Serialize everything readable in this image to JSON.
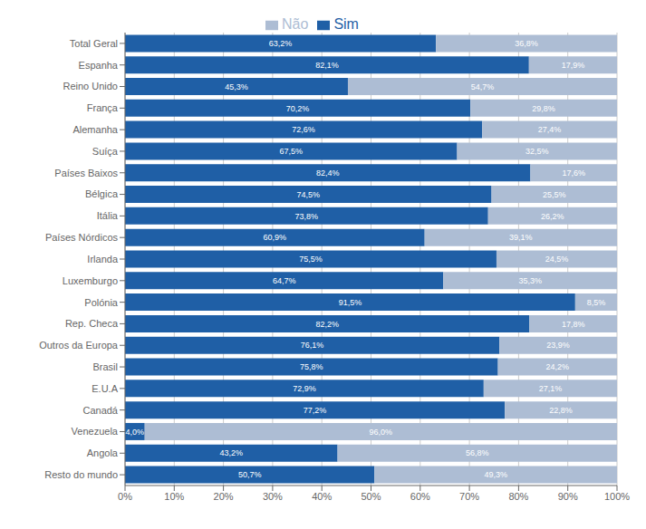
{
  "chart_data": {
    "type": "bar",
    "orientation": "horizontal",
    "stacked": true,
    "data_labels": true,
    "grid": true,
    "legend": "top",
    "categories": [
      "Total Geral",
      "Espanha",
      "Reino Unido",
      "França",
      "Alemanha",
      "Suíça",
      "Países Baixos",
      "Bélgica",
      "Itália",
      "Países Nórdicos",
      "Irlanda",
      "Luxemburgo",
      "Polónia",
      "Rep. Checa",
      "Outros da Europa",
      "Brasil",
      "E.U.A",
      "Canadá",
      "Venezuela",
      "Angola",
      "Resto do mundo"
    ],
    "series": [
      {
        "name": "Sim",
        "color": "#1F5FA6",
        "values": [
          63.2,
          82.1,
          45.3,
          70.2,
          72.6,
          67.5,
          82.4,
          74.5,
          73.8,
          60.9,
          75.5,
          64.7,
          91.5,
          82.2,
          76.1,
          75.8,
          72.9,
          77.2,
          4.0,
          43.2,
          50.7
        ],
        "value_labels": [
          "63,2%",
          "82,1%",
          "45,3%",
          "70,2%",
          "72,6%",
          "67,5%",
          "82,4%",
          "74,5%",
          "73,8%",
          "60,9%",
          "75,5%",
          "64,7%",
          "91,5%",
          "82,2%",
          "76,1%",
          "75,8%",
          "72,9%",
          "77,2%",
          "4,0%",
          "43,2%",
          "50,7%"
        ]
      },
      {
        "name": "Não",
        "color": "#ADBDD4",
        "values": [
          36.8,
          17.9,
          54.7,
          29.8,
          27.4,
          32.5,
          17.6,
          25.5,
          26.2,
          39.1,
          24.5,
          35.3,
          8.5,
          17.8,
          23.9,
          24.2,
          27.1,
          22.8,
          96.0,
          56.8,
          49.3
        ],
        "value_labels": [
          "36,8%",
          "17,9%",
          "54,7%",
          "29,8%",
          "27,4%",
          "32,5%",
          "17,6%",
          "25,5%",
          "26,2%",
          "39,1%",
          "24,5%",
          "35,3%",
          "8,5%",
          "17,8%",
          "23,9%",
          "24,2%",
          "27,1%",
          "22,8%",
          "96,0%",
          "56,8%",
          "49,3%"
        ]
      }
    ],
    "xlim": [
      0,
      100
    ],
    "xticks": [
      {
        "value": 0,
        "label": "0%"
      },
      {
        "value": 10,
        "label": "10%"
      },
      {
        "value": 20,
        "label": "20%"
      },
      {
        "value": 30,
        "label": "30%"
      },
      {
        "value": 40,
        "label": "40%"
      },
      {
        "value": 50,
        "label": "50%"
      },
      {
        "value": 60,
        "label": "60%"
      },
      {
        "value": 70,
        "label": "70%"
      },
      {
        "value": 80,
        "label": "80%"
      },
      {
        "value": 90,
        "label": "90%"
      },
      {
        "value": 100,
        "label": "100%"
      }
    ]
  }
}
